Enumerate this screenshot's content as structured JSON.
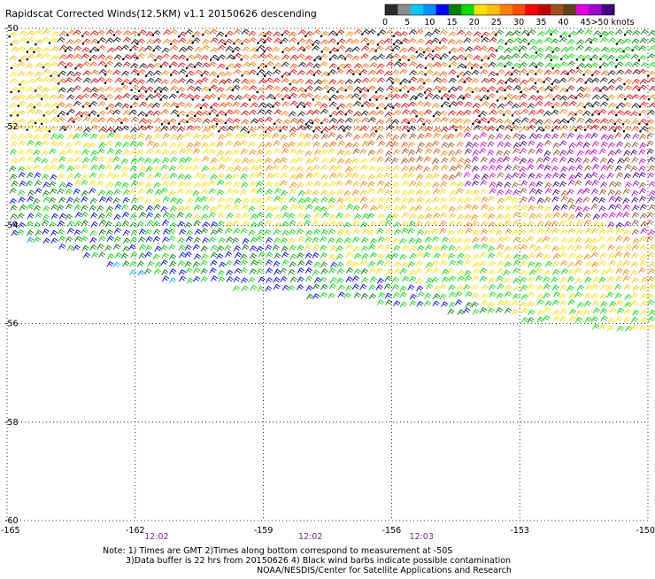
{
  "title": "Rapidscat Corrected Winds(12.5KM) v1.1 20150626 descending",
  "colorbar": {
    "unit": "knots",
    "bins": [
      {
        "color": "#2b2b2b"
      },
      {
        "color": "#8c8c8c"
      },
      {
        "color": "#00c8ff"
      },
      {
        "color": "#0090ff"
      },
      {
        "color": "#0000ff"
      },
      {
        "color": "#008000"
      },
      {
        "color": "#00e000"
      },
      {
        "color": "#ffe000"
      },
      {
        "color": "#ffc000"
      },
      {
        "color": "#ff8000"
      },
      {
        "color": "#ff5000"
      },
      {
        "color": "#ff0000"
      },
      {
        "color": "#c00000"
      },
      {
        "color": "#a05020"
      },
      {
        "color": "#604020"
      },
      {
        "color": "#e000e0"
      },
      {
        "color": "#a000d0"
      },
      {
        "color": "#400080"
      }
    ],
    "tick_labels": [
      "0",
      "5",
      "10",
      "15",
      "20",
      "25",
      "30",
      "35",
      "40",
      "45",
      ">50 knots"
    ]
  },
  "axes": {
    "x_ticks": [
      "-165",
      "-162",
      "-159",
      "-156",
      "-153",
      "-150"
    ],
    "y_ticks": [
      "-50",
      "-52",
      "-54",
      "-56",
      "-58",
      "-60"
    ],
    "xlim": [
      -165,
      -150
    ],
    "ylim": [
      -60,
      -50
    ]
  },
  "time_labels": [
    {
      "text": "12:02",
      "lon": -161.5
    },
    {
      "text": "12:02",
      "lon": -157.9
    },
    {
      "text": "12:03",
      "lon": -155.3
    }
  ],
  "notes": [
    "Note: 1) Times are GMT 2)Times along bottom correspond to measurement at -50S",
    "3)Data buffer is 22 hrs from 20150626 4) Black wind barbs indicate possible contamination",
    "NOAA/NESDIS/Center for Satellite Applications and Research"
  ],
  "colors": {
    "time_label": "#7a2a8a",
    "grid": "#000000"
  }
}
